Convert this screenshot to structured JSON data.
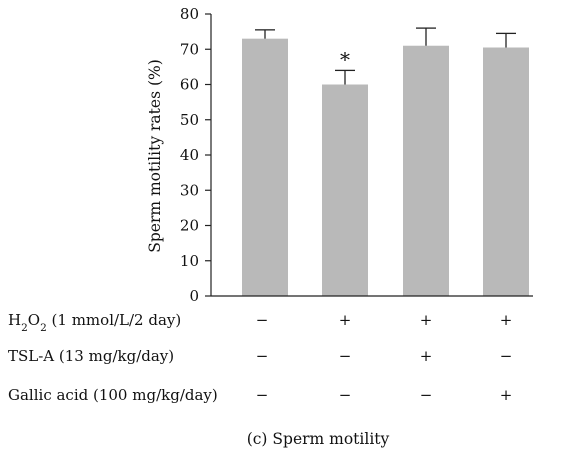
{
  "chart_data": {
    "type": "bar",
    "ylabel": "Sperm motility rates (%)",
    "ylim": [
      0,
      80
    ],
    "yticks": [
      0,
      10,
      20,
      30,
      40,
      50,
      60,
      70,
      80
    ],
    "grid": false,
    "legend": "none",
    "bar_color": "#b9b9b9",
    "values": [
      73,
      60,
      71,
      70.5
    ],
    "errors": [
      2.5,
      4,
      5,
      4
    ],
    "annotations": [
      "",
      "*",
      "",
      ""
    ],
    "treatments": [
      {
        "label_parts": [
          "H",
          "2",
          "O",
          "2",
          " (1 mmol/L/2 day)"
        ],
        "signs": [
          "−",
          "+",
          "+",
          "+"
        ]
      },
      {
        "label_parts": [
          "TSL-A (13 mg/kg/day)"
        ],
        "signs": [
          "−",
          "−",
          "+",
          "−"
        ]
      },
      {
        "label_parts": [
          "Gallic acid (100 mg/kg/day)"
        ],
        "signs": [
          "−",
          "−",
          "−",
          "+"
        ]
      }
    ]
  },
  "caption": "(c) Sperm motility"
}
